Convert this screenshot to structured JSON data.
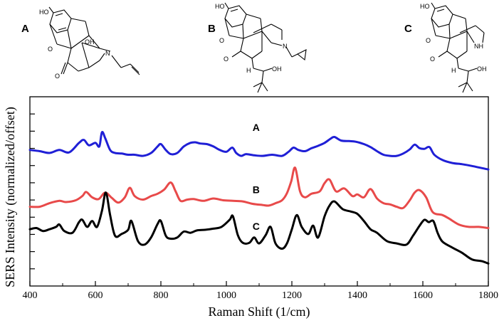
{
  "chart_data": {
    "type": "line",
    "title": "",
    "xlabel": "Raman Shift (1/cm)",
    "ylabel": "SERS Intensity (normalized/offset)",
    "xlim": [
      400,
      1800
    ],
    "ylim": [
      0,
      3.2
    ],
    "xticks": [
      400,
      600,
      800,
      1000,
      1200,
      1400,
      1600,
      1800
    ],
    "xtick_labels": [
      "400",
      "600",
      "800",
      "1000",
      "1200",
      "1400",
      "1600",
      "1800"
    ],
    "y_tick_labels_shown": false,
    "grid": false,
    "series": [
      {
        "name": "A",
        "color": "#1f1fd6",
        "x": [
          400,
          430,
          460,
          490,
          520,
          550,
          565,
          580,
          600,
          612,
          620,
          630,
          645,
          660,
          680,
          700,
          720,
          745,
          770,
          790,
          800,
          815,
          830,
          850,
          870,
          890,
          905,
          920,
          940,
          960,
          980,
          1000,
          1018,
          1030,
          1045,
          1060,
          1085,
          1110,
          1140,
          1170,
          1190,
          1205,
          1220,
          1240,
          1260,
          1280,
          1300,
          1318,
          1330,
          1350,
          1375,
          1395,
          1420,
          1440,
          1460,
          1480,
          1500,
          1520,
          1540,
          1560,
          1575,
          1590,
          1605,
          1620,
          1635,
          1660,
          1690,
          1720,
          1750,
          1800
        ],
        "y": [
          2.3,
          2.28,
          2.25,
          2.3,
          2.26,
          2.42,
          2.47,
          2.38,
          2.42,
          2.36,
          2.6,
          2.5,
          2.3,
          2.25,
          2.24,
          2.22,
          2.22,
          2.2,
          2.25,
          2.36,
          2.4,
          2.3,
          2.23,
          2.25,
          2.36,
          2.42,
          2.43,
          2.41,
          2.4,
          2.36,
          2.3,
          2.27,
          2.34,
          2.25,
          2.2,
          2.23,
          2.21,
          2.2,
          2.22,
          2.2,
          2.27,
          2.34,
          2.3,
          2.28,
          2.33,
          2.37,
          2.42,
          2.49,
          2.52,
          2.46,
          2.45,
          2.44,
          2.4,
          2.35,
          2.28,
          2.22,
          2.2,
          2.2,
          2.24,
          2.31,
          2.39,
          2.33,
          2.32,
          2.35,
          2.22,
          2.13,
          2.08,
          2.06,
          2.03,
          1.97
        ]
      },
      {
        "name": "B",
        "color": "#e84a4a",
        "x": [
          400,
          430,
          460,
          490,
          510,
          540,
          560,
          572,
          590,
          610,
          630,
          650,
          670,
          690,
          705,
          720,
          745,
          770,
          790,
          810,
          830,
          845,
          860,
          880,
          900,
          930,
          960,
          990,
          1020,
          1050,
          1080,
          1110,
          1130,
          1150,
          1170,
          1185,
          1198,
          1210,
          1225,
          1240,
          1260,
          1285,
          1300,
          1315,
          1335,
          1360,
          1385,
          1400,
          1420,
          1440,
          1460,
          1480,
          1500,
          1520,
          1540,
          1560,
          1575,
          1590,
          1610,
          1630,
          1660,
          1680,
          1710,
          1740,
          1770,
          1800
        ],
        "y": [
          1.34,
          1.34,
          1.4,
          1.44,
          1.42,
          1.45,
          1.52,
          1.59,
          1.5,
          1.47,
          1.58,
          1.49,
          1.41,
          1.5,
          1.66,
          1.52,
          1.46,
          1.52,
          1.56,
          1.63,
          1.75,
          1.6,
          1.44,
          1.46,
          1.47,
          1.44,
          1.48,
          1.45,
          1.44,
          1.43,
          1.39,
          1.37,
          1.36,
          1.4,
          1.45,
          1.57,
          1.77,
          2.0,
          1.6,
          1.5,
          1.56,
          1.6,
          1.74,
          1.8,
          1.6,
          1.65,
          1.52,
          1.55,
          1.5,
          1.64,
          1.48,
          1.4,
          1.38,
          1.34,
          1.32,
          1.45,
          1.58,
          1.62,
          1.5,
          1.25,
          1.2,
          1.14,
          1.04,
          1.0,
          1.0,
          0.98
        ]
      },
      {
        "name": "C",
        "color": "#000000",
        "x": [
          400,
          420,
          440,
          460,
          480,
          490,
          505,
          530,
          550,
          560,
          575,
          590,
          605,
          620,
          632,
          645,
          660,
          680,
          700,
          710,
          730,
          750,
          770,
          790,
          800,
          815,
          830,
          850,
          870,
          890,
          910,
          935,
          960,
          985,
          1010,
          1020,
          1035,
          1050,
          1070,
          1085,
          1100,
          1120,
          1135,
          1150,
          1170,
          1185,
          1200,
          1215,
          1230,
          1250,
          1265,
          1280,
          1300,
          1315,
          1330,
          1355,
          1380,
          1400,
          1420,
          1440,
          1460,
          1490,
          1520,
          1550,
          1570,
          1590,
          1605,
          1618,
          1632,
          1645,
          1660,
          1690,
          1720,
          1750,
          1780,
          1800
        ],
        "y": [
          0.96,
          0.98,
          0.93,
          0.96,
          1.0,
          1.04,
          0.93,
          0.9,
          1.08,
          1.12,
          1.0,
          1.1,
          1.0,
          1.27,
          1.58,
          1.2,
          0.85,
          0.88,
          0.95,
          1.1,
          0.76,
          0.7,
          0.82,
          1.05,
          1.1,
          0.85,
          0.8,
          0.82,
          0.92,
          0.9,
          0.94,
          0.95,
          0.97,
          1.0,
          1.12,
          1.18,
          0.86,
          0.73,
          0.73,
          0.82,
          0.72,
          0.86,
          1.0,
          0.72,
          0.63,
          0.72,
          0.96,
          1.2,
          1.0,
          0.88,
          1.02,
          0.82,
          1.18,
          1.36,
          1.43,
          1.3,
          1.26,
          1.22,
          1.1,
          0.96,
          0.9,
          0.76,
          0.72,
          0.7,
          0.85,
          1.02,
          1.12,
          1.08,
          1.1,
          0.9,
          0.75,
          0.65,
          0.56,
          0.45,
          0.42,
          0.38
        ]
      }
    ],
    "annotations": [
      "A",
      "B",
      "C"
    ]
  },
  "structures": [
    {
      "label": "A",
      "atoms": [
        "HO",
        "O",
        "OH",
        "N",
        "O"
      ]
    },
    {
      "label": "B",
      "atoms": [
        "HO",
        "O",
        "N",
        "O",
        "H",
        "OH"
      ]
    },
    {
      "label": "C",
      "atoms": [
        "HO",
        "O",
        "NH",
        "O",
        "H",
        "OH"
      ]
    }
  ]
}
